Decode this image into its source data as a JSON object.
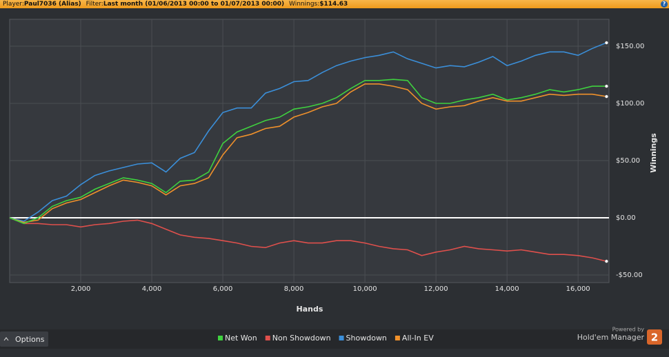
{
  "header": {
    "player_label": "Player:",
    "player": "Paul7036 (Alias)",
    "filter_label": "Filter:",
    "filter": "Last month (01/06/2013 00:00 to 01/07/2013 00:00)",
    "winnings_label": "Winnings:",
    "winnings": "$114.63",
    "help": "?"
  },
  "chart_data": {
    "type": "line",
    "xlabel": "Hands",
    "ylabel": "Winnings",
    "grid": true,
    "legend": "bottom",
    "x": [
      0,
      400,
      800,
      1200,
      1600,
      2000,
      2400,
      2800,
      3200,
      3600,
      4000,
      4400,
      4800,
      5200,
      5600,
      6000,
      6400,
      6800,
      7200,
      7600,
      8000,
      8400,
      8800,
      9200,
      9600,
      10000,
      10400,
      10800,
      11200,
      11600,
      12000,
      12400,
      12800,
      13200,
      13600,
      14000,
      14400,
      14800,
      15200,
      15600,
      16000,
      16400,
      16800
    ],
    "xlim": [
      0,
      16870
    ],
    "xticks": [
      {
        "value": 2000,
        "label": "2,000"
      },
      {
        "value": 4000,
        "label": "4,000"
      },
      {
        "value": 6000,
        "label": "6,000"
      },
      {
        "value": 8000,
        "label": "8,000"
      },
      {
        "value": 10000,
        "label": "10,000"
      },
      {
        "value": 12000,
        "label": "12,000"
      },
      {
        "value": 14000,
        "label": "14,000"
      },
      {
        "value": 16000,
        "label": "16,000"
      }
    ],
    "ylim": [
      -56.6,
      173.5
    ],
    "yticks": [
      {
        "value": -50,
        "label": "-$50.00"
      },
      {
        "value": 0,
        "label": "$0.00"
      },
      {
        "value": 50,
        "label": "$50.00"
      },
      {
        "value": 100,
        "label": "$100.00"
      },
      {
        "value": 150,
        "label": "$150.00"
      }
    ],
    "series": [
      {
        "name": "Net Won",
        "color": "#3fd23f",
        "values": [
          0,
          -5,
          0,
          10,
          15,
          18,
          25,
          30,
          35,
          33,
          30,
          22,
          32,
          33,
          40,
          65,
          75,
          80,
          85,
          88,
          95,
          97,
          100,
          105,
          113,
          120,
          120,
          121,
          120,
          105,
          100,
          100,
          103,
          105,
          108,
          103,
          105,
          108,
          112,
          110,
          112,
          115,
          115
        ]
      },
      {
        "name": "Non Showdown",
        "color": "#e0504c",
        "values": [
          0,
          -5,
          -5,
          -6,
          -6,
          -8,
          -6,
          -5,
          -3,
          -2,
          -5,
          -10,
          -15,
          -17,
          -18,
          -20,
          -22,
          -25,
          -26,
          -22,
          -20,
          -22,
          -22,
          -20,
          -20,
          -22,
          -25,
          -27,
          -28,
          -33,
          -30,
          -28,
          -25,
          -27,
          -28,
          -29,
          -28,
          -30,
          -32,
          -32,
          -33,
          -35,
          -38
        ]
      },
      {
        "name": "Showdown",
        "color": "#3b8fd9",
        "values": [
          0,
          -3,
          5,
          15,
          19,
          29,
          37,
          41,
          44,
          47,
          48,
          40,
          52,
          57,
          76,
          92,
          96,
          96,
          109,
          113,
          119,
          120,
          127,
          133,
          137,
          140,
          142,
          145,
          139,
          135,
          131,
          133,
          132,
          136,
          141,
          133,
          137,
          142,
          145,
          145,
          142,
          148,
          153
        ]
      },
      {
        "name": "All-In EV",
        "color": "#f0912b",
        "values": [
          0,
          -4,
          -2,
          8,
          13,
          16,
          22,
          28,
          33,
          31,
          28,
          20,
          28,
          30,
          35,
          55,
          70,
          73,
          78,
          80,
          88,
          92,
          97,
          100,
          110,
          117,
          117,
          115,
          112,
          100,
          95,
          97,
          98,
          102,
          105,
          102,
          102,
          105,
          108,
          107,
          108,
          108,
          106
        ]
      }
    ]
  },
  "footer": {
    "options": "Options",
    "powered_by": "Powered by",
    "brand": "Hold'em Manager",
    "brand_version": "2"
  }
}
